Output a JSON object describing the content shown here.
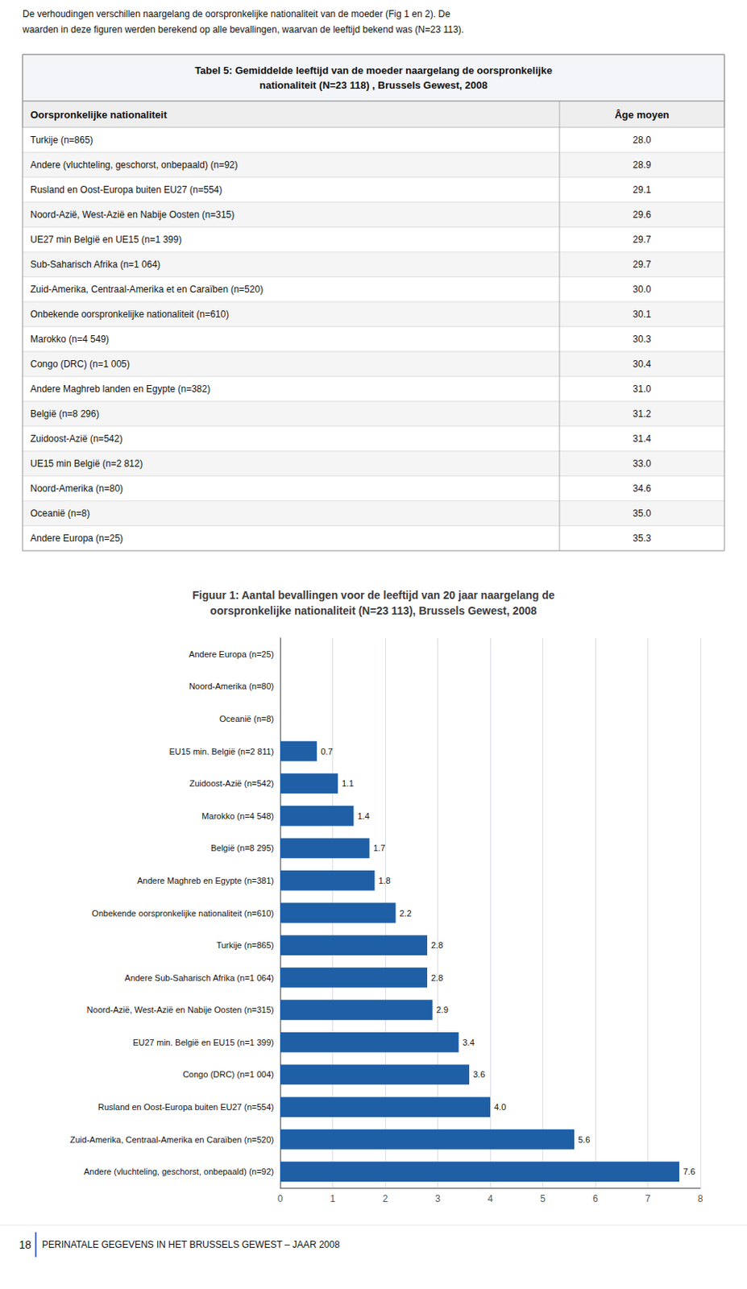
{
  "chart_data": [
    {
      "type": "table",
      "annotations": [
        "De verhoudingen verschillen naargelang de oorspronkelijke nationaliteit van de moeder (Fig 1 en 2). De",
        "waarden in deze figuren werden berekend op alle bevallingen, waarvan de leeftijd bekend was (N=23 113)."
      ],
      "title": "Tabel 5: Gemiddelde leeftijd van de moeder naargelang de oorspronkelijke\nnationaliteit (N=23 118) , Brussels Gewest, 2008",
      "columns": [
        "Oorspronkelijke nationaliteit",
        "Âge moyen"
      ],
      "categories": [
        "Turkije (n=865)",
        "Andere (vluchteling, geschorst, onbepaald) (n=92)",
        "Rusland en Oost-Europa buiten EU27 (n=554)",
        "Noord-Azië, West-Azië en Nabije Oosten (n=315)",
        "UE27 min België en UE15 (n=1 399)",
        "Sub-Saharisch Afrika (n=1 064)",
        "Zuid-Amerika, Centraal-Amerika et en Caraïben (n=520)",
        "Onbekende oorspronkelijke nationaliteit (n=610)",
        "Marokko (n=4 549)",
        "Congo (DRC) (n=1 005)",
        "Andere Maghreb landen en Egypte (n=382)",
        "België (n=8 296)",
        "Zuidoost-Azië (n=542)",
        "UE15 min België (n=2 812)",
        "Noord-Amerika (n=80)",
        "Oceanië (n=8)",
        "Andere Europa (n=25)"
      ],
      "values": [
        28.0,
        28.9,
        29.1,
        29.6,
        29.7,
        29.7,
        30.0,
        30.1,
        30.3,
        30.4,
        31.0,
        31.2,
        31.4,
        33.0,
        34.6,
        35.0,
        35.3
      ],
      "value_labels": [
        "28.0",
        "28.9",
        "29.1",
        "29.6",
        "29.7",
        "29.7",
        "30.0",
        "30.1",
        "30.3",
        "30.4",
        "31.0",
        "31.2",
        "31.4",
        "33.0",
        "34.6",
        "35.0",
        "35.3"
      ]
    },
    {
      "type": "bar",
      "title": "Figuur 1: Aantal bevallingen voor de leeftijd van 20 jaar naargelang de\noorspronkelijke nationaliteit (N=23 113), Brussels Gewest, 2008",
      "orientation": "horizontal",
      "categories": [
        "Andere (vluchteling, geschorst, onbepaald) (n=92)",
        "Zuid-Amerika, Centraal-Amerika en Caraïben (n=520)",
        "Rusland en Oost-Europa buiten EU27 (n=554)",
        "Congo (DRC) (n=1 004)",
        "EU27 min. België en EU15 (n=1 399)",
        "Noord-Azië, West-Azië en Nabije Oosten (n=315)",
        "Andere Sub-Saharisch Afrika (n=1 064)",
        "Turkije (n=865)",
        "Onbekende oorspronkelijke nationaliteit (n=610)",
        "Andere Maghreb en Egypte (n=381)",
        "België (n=8 295)",
        "Marokko (n=4 548)",
        "Zuidoost-Azië (n=542)",
        "EU15 min. België (n=2 811)",
        "Oceanië (n=8)",
        "Noord-Amerika (n=80)",
        "Andere Europa (n=25)"
      ],
      "values": [
        7.6,
        5.6,
        4.0,
        3.6,
        3.4,
        2.9,
        2.8,
        2.8,
        2.2,
        1.8,
        1.7,
        1.4,
        1.1,
        0.7,
        0.0,
        0.0,
        0.0
      ],
      "value_labels": [
        "7.6",
        "5.6",
        "4.0",
        "3.6",
        "3.4",
        "2.9",
        "2.8",
        "2.8",
        "2.2",
        "1.8",
        "1.7",
        "1.4",
        "1.1",
        "0.7",
        null,
        null,
        null
      ],
      "data_labels": true,
      "color": "#1f5fa6",
      "xlim": [
        0,
        8
      ],
      "xticks": [
        0,
        1,
        2,
        3,
        4,
        5,
        6,
        7,
        8
      ],
      "grid": true,
      "annotations": [
        "18",
        "PERINATALE GEGEVENS IN HET BRUSSELS GEWEST – JAAR 2008"
      ]
    }
  ]
}
